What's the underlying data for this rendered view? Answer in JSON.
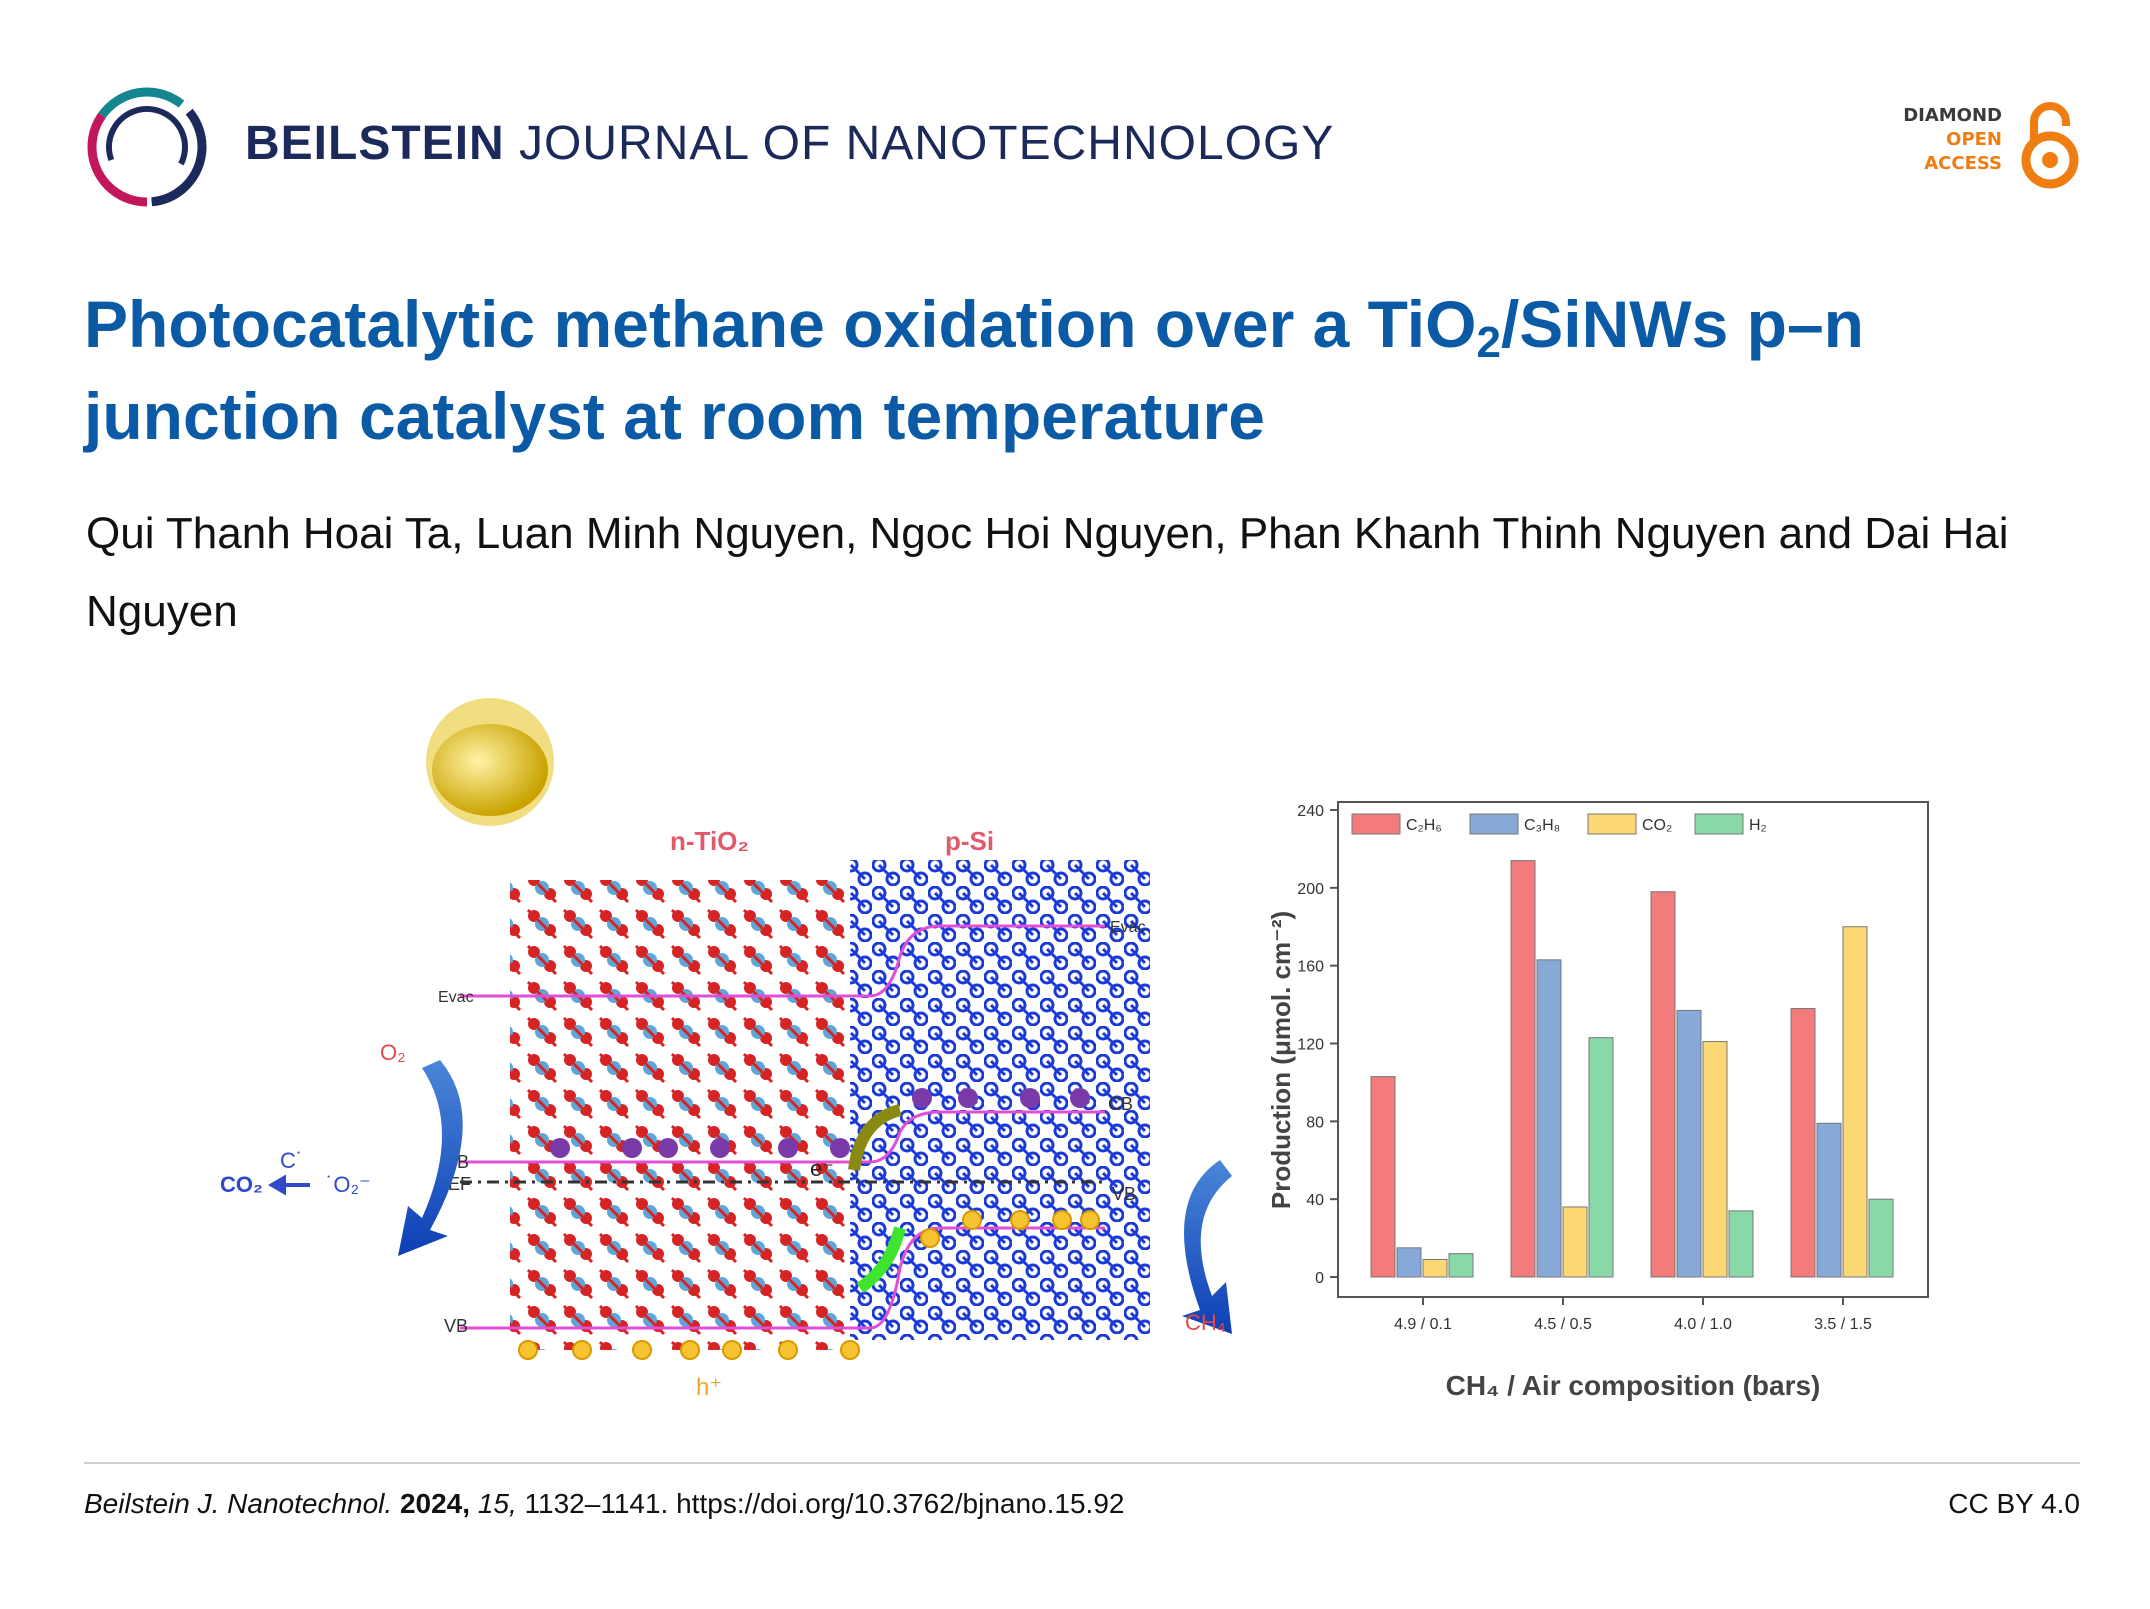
{
  "header": {
    "journal_bold": "BEILSTEIN",
    "journal_rest": "JOURNAL OF NANOTECHNOLOGY",
    "badge_line1": "DIAMOND",
    "badge_line2": "OPEN",
    "badge_line3": "ACCESS"
  },
  "article": {
    "title_part1": "Photocatalytic methane oxidation over a TiO",
    "title_sub": "2",
    "title_part2": "/SiNWs p–n junction catalyst at room temperature",
    "authors": "Qui Thanh Hoai Ta, Luan Minh Nguyen, Ngoc Hoi Nguyen, Phan Khanh Thinh Nguyen and Dai Hai Nguyen"
  },
  "figure": {
    "label_ntio2": "n-TiO₂",
    "label_psi": "p-Si",
    "label_evac_left": "Evac",
    "label_evac_right": "Evac",
    "label_cb_left": "CB",
    "label_ef": "EF",
    "label_vb_left": "VB",
    "label_cb_right": "CB",
    "label_vb_right": "VB",
    "label_o2": "O₂",
    "label_co2": "CO₂",
    "label_c": "C˙",
    "label_o2rad": "˙O₂⁻",
    "label_ch4": "CH₄",
    "label_h": "h⁺",
    "label_e": "e⁻"
  },
  "chart_data": {
    "type": "bar",
    "categories": [
      "4.9 / 0.1",
      "4.5 / 0.5",
      "4.0 / 1.0",
      "3.5 / 1.5"
    ],
    "series": [
      {
        "name": "C₂H₆",
        "values": [
          103,
          214,
          198,
          138
        ],
        "color": "#f47b7b"
      },
      {
        "name": "C₃H₈",
        "values": [
          15,
          163,
          137,
          79
        ],
        "color": "#86a9d8"
      },
      {
        "name": "CO₂",
        "values": [
          9,
          36,
          121,
          180
        ],
        "color": "#fbd873"
      },
      {
        "name": "H₂",
        "values": [
          12,
          123,
          34,
          40
        ],
        "color": "#87d9a7"
      }
    ],
    "xlabel": "CH₄ / Air composition (bars)",
    "ylabel": "Production (μmol. cm⁻²)",
    "ylim": [
      0,
      240
    ],
    "yticks": [
      0,
      40,
      80,
      120,
      160,
      200,
      240
    ],
    "legend": "top"
  },
  "footer": {
    "journal_abbrev": "Beilstein J. Nanotechnol.",
    "year": "2024,",
    "volume": "15,",
    "pages": "1132–1141.",
    "doi": "https://doi.org/10.3762/bjnano.15.92",
    "license": "CC BY 4.0"
  }
}
